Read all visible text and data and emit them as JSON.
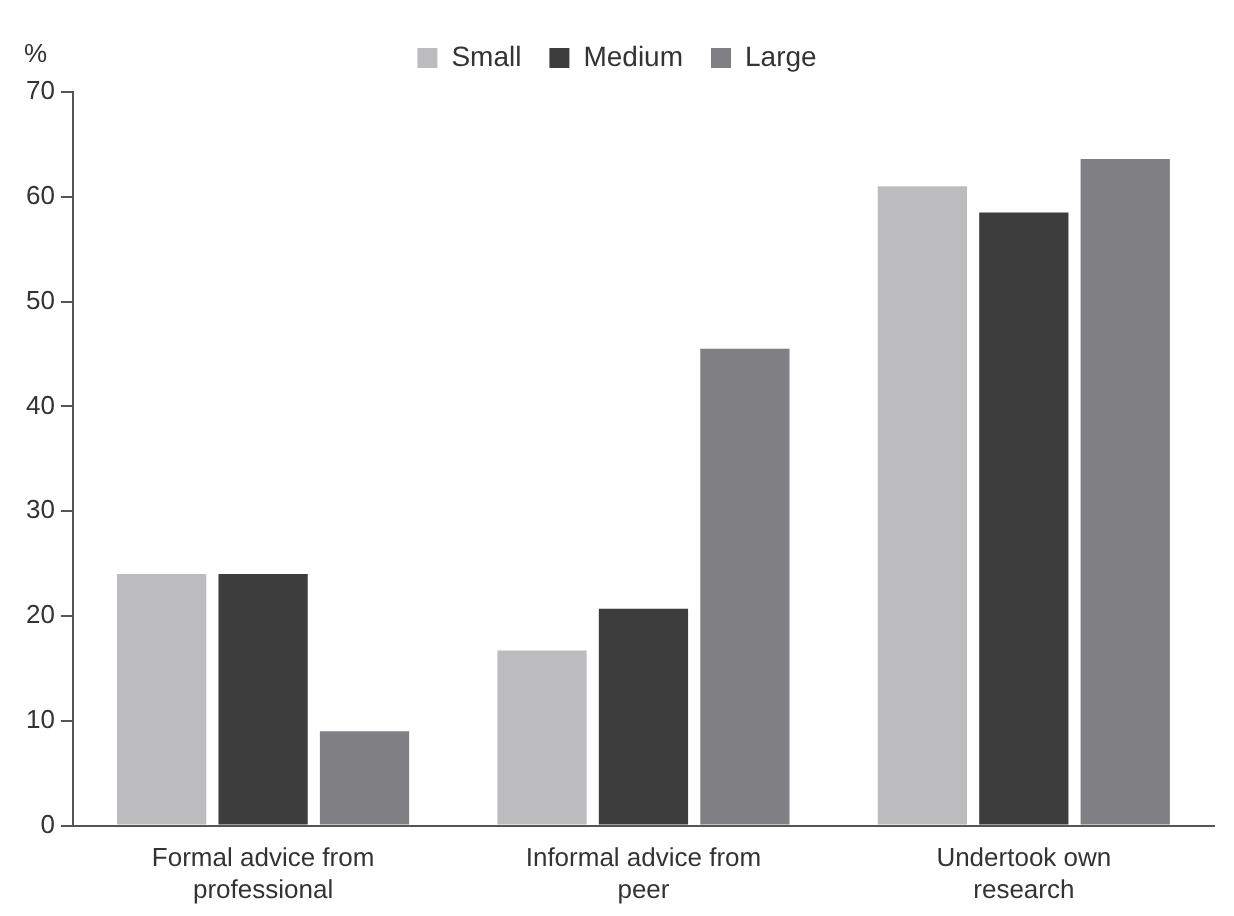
{
  "chart_data": {
    "type": "bar",
    "ylabel": "%",
    "categories": [
      "Formal advice from professional",
      "Informal advice from peer",
      "Undertook own research"
    ],
    "series": [
      {
        "name": "Small",
        "color": "#bcbcbe",
        "values": [
          24,
          16.7,
          61
        ]
      },
      {
        "name": "Medium",
        "color": "#3d3d3d",
        "values": [
          24,
          20.7,
          58.5
        ]
      },
      {
        "name": "Large",
        "color": "#808084",
        "values": [
          9,
          45.5,
          63.6
        ]
      }
    ],
    "ylim": [
      0,
      70
    ],
    "yticks": [
      0,
      10,
      20,
      30,
      40,
      50,
      60,
      70
    ],
    "grid": false,
    "legend": "top"
  }
}
